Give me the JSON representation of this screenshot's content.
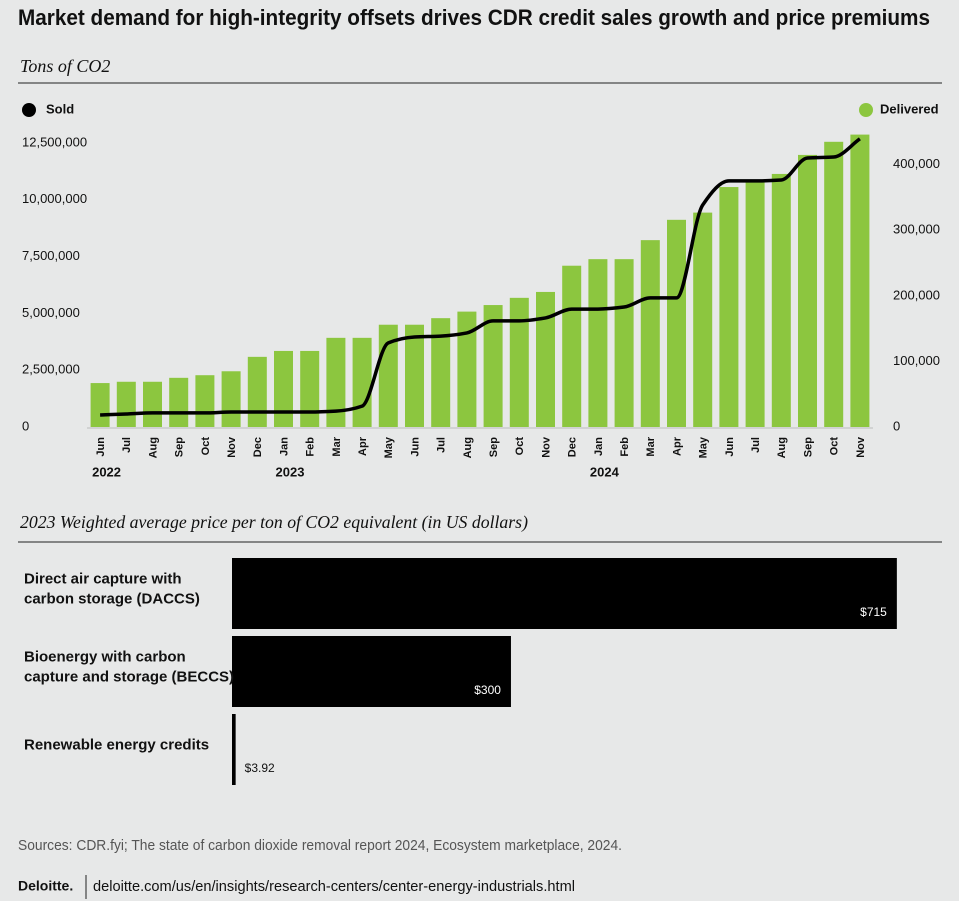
{
  "title": "Market demand for high-integrity offsets drives CDR credit sales growth and price premiums",
  "chart_data": [
    {
      "type": "combo",
      "subtitle": "Tons of CO2",
      "legend": "top",
      "categories": [
        "Jun",
        "Jul",
        "Aug",
        "Sep",
        "Oct",
        "Nov",
        "Dec",
        "Jan",
        "Feb",
        "Mar",
        "Apr",
        "May",
        "Jun",
        "Jul",
        "Aug",
        "Sep",
        "Oct",
        "Nov",
        "Dec",
        "Jan",
        "Feb",
        "Mar",
        "Apr",
        "May",
        "Jun",
        "Jul",
        "Aug",
        "Sep",
        "Oct",
        "Nov"
      ],
      "years": [
        "2022",
        null,
        null,
        null,
        null,
        null,
        null,
        "2023",
        null,
        null,
        null,
        null,
        null,
        null,
        null,
        null,
        null,
        null,
        null,
        "2024",
        null,
        null,
        null,
        null,
        null,
        null,
        null,
        null,
        null,
        null
      ],
      "series": [
        {
          "name": "Sold",
          "type": "line",
          "axis": "y",
          "color": "#000000",
          "values": [
            530000,
            570000,
            620000,
            620000,
            620000,
            660000,
            660000,
            660000,
            660000,
            700000,
            920000,
            3700000,
            3960000,
            4000000,
            4140000,
            4670000,
            4670000,
            4800000,
            5190000,
            5190000,
            5280000,
            5680000,
            5680000,
            9770000,
            10830000,
            10830000,
            10870000,
            11840000,
            11880000,
            12680000
          ]
        },
        {
          "name": "Delivered",
          "type": "bar",
          "axis": "y2",
          "color": "#8cc63f",
          "values": [
            67000,
            69000,
            69000,
            75000,
            79000,
            85000,
            107000,
            116000,
            116000,
            136000,
            136000,
            156000,
            156000,
            166000,
            176000,
            186000,
            197000,
            206000,
            246000,
            256000,
            256000,
            285000,
            316000,
            327000,
            366000,
            377000,
            386000,
            415000,
            435000,
            446000
          ]
        }
      ],
      "ylim": [
        0,
        13070000
      ],
      "yticks": [
        0,
        {
          "value": 2500000,
          "label": "2,500,000"
        },
        {
          "value": 5000000,
          "label": "5,000,000"
        },
        {
          "value": 7500000,
          "label": "7,500,000"
        },
        {
          "value": 10000000,
          "label": "10,000,000"
        },
        {
          "value": 12500000,
          "label": "12,500,000"
        }
      ],
      "y2lim": [
        0,
        453000
      ],
      "y2ticks": [
        0,
        {
          "value": 100000,
          "label": "100,000"
        },
        {
          "value": 200000,
          "label": "200,000"
        },
        {
          "value": 300000,
          "label": "300,000"
        },
        {
          "value": 400000,
          "label": "400,000"
        }
      ]
    },
    {
      "type": "hbar",
      "title": "2023 Weighted average price per ton of CO2 equivalent (in US dollars)",
      "categories": [
        [
          "Direct air capture with",
          "carbon storage (DACCS)"
        ],
        [
          "Bioenergy with carbon",
          "capture and storage (BECCS)"
        ],
        [
          "Renewable energy credits"
        ]
      ],
      "values": [
        715,
        300,
        3.92
      ],
      "value_labels": [
        "$715",
        "$300",
        "$3.92"
      ],
      "color": "#000000",
      "xlim": [
        0,
        770
      ]
    }
  ],
  "source": "Sources: CDR.fyi; The state of carbon dioxide removal report 2024, Ecosystem marketplace, 2024.",
  "footer": {
    "brand": "Deloitte.",
    "url": "deloitte.com/us/en/insights/research-centers/center-energy-industrials.html"
  }
}
